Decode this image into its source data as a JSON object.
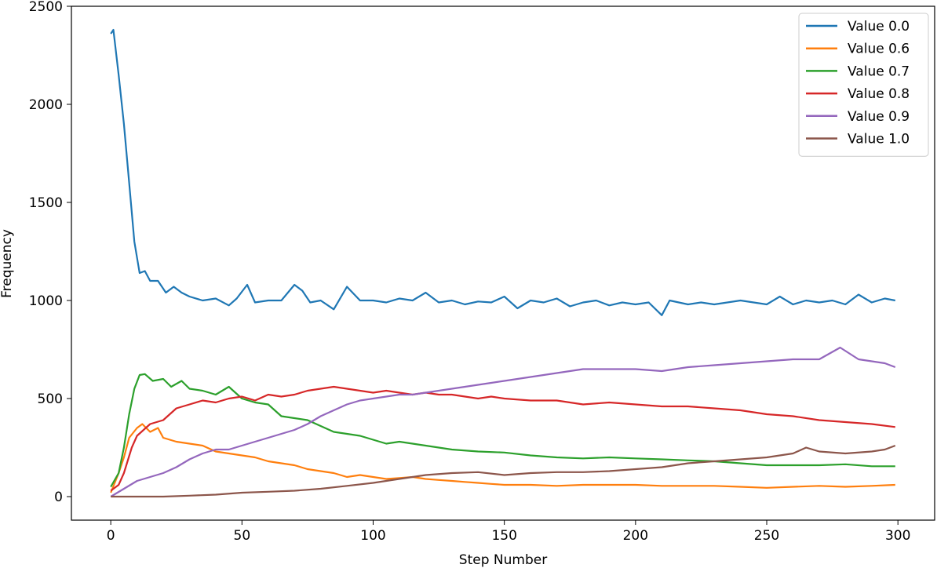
{
  "chart_data": {
    "type": "line",
    "title": "",
    "xlabel": "Step Number",
    "ylabel": "Frequency",
    "xlim": [
      -15,
      314
    ],
    "ylim": [
      -120,
      2500
    ],
    "xticks": [
      0,
      50,
      100,
      150,
      200,
      250,
      300
    ],
    "yticks": [
      0,
      500,
      1000,
      1500,
      2000,
      2500
    ],
    "grid": false,
    "legend_position": "top-right",
    "series": [
      {
        "name": "Value 0.0",
        "color": "#1f77b4",
        "points": [
          [
            0,
            2360
          ],
          [
            1,
            2380
          ],
          [
            3,
            2150
          ],
          [
            5,
            1900
          ],
          [
            7,
            1600
          ],
          [
            9,
            1300
          ],
          [
            11,
            1140
          ],
          [
            13,
            1150
          ],
          [
            15,
            1100
          ],
          [
            18,
            1100
          ],
          [
            21,
            1040
          ],
          [
            24,
            1070
          ],
          [
            27,
            1040
          ],
          [
            30,
            1020
          ],
          [
            35,
            1000
          ],
          [
            40,
            1010
          ],
          [
            45,
            975
          ],
          [
            48,
            1010
          ],
          [
            52,
            1080
          ],
          [
            55,
            990
          ],
          [
            60,
            1000
          ],
          [
            65,
            1000
          ],
          [
            70,
            1080
          ],
          [
            73,
            1050
          ],
          [
            76,
            990
          ],
          [
            80,
            1000
          ],
          [
            85,
            955
          ],
          [
            90,
            1070
          ],
          [
            95,
            1000
          ],
          [
            100,
            1000
          ],
          [
            105,
            990
          ],
          [
            110,
            1010
          ],
          [
            115,
            1000
          ],
          [
            120,
            1040
          ],
          [
            125,
            990
          ],
          [
            130,
            1000
          ],
          [
            135,
            980
          ],
          [
            140,
            995
          ],
          [
            145,
            990
          ],
          [
            150,
            1020
          ],
          [
            155,
            960
          ],
          [
            160,
            1000
          ],
          [
            165,
            990
          ],
          [
            170,
            1010
          ],
          [
            175,
            970
          ],
          [
            180,
            990
          ],
          [
            185,
            1000
          ],
          [
            190,
            975
          ],
          [
            195,
            990
          ],
          [
            200,
            980
          ],
          [
            205,
            990
          ],
          [
            210,
            925
          ],
          [
            213,
            1000
          ],
          [
            220,
            980
          ],
          [
            225,
            990
          ],
          [
            230,
            980
          ],
          [
            235,
            990
          ],
          [
            240,
            1000
          ],
          [
            245,
            990
          ],
          [
            250,
            980
          ],
          [
            255,
            1020
          ],
          [
            260,
            980
          ],
          [
            265,
            1000
          ],
          [
            270,
            990
          ],
          [
            275,
            1000
          ],
          [
            280,
            980
          ],
          [
            285,
            1030
          ],
          [
            290,
            990
          ],
          [
            295,
            1010
          ],
          [
            299,
            1000
          ]
        ]
      },
      {
        "name": "Value 0.6",
        "color": "#ff7f0e",
        "points": [
          [
            0,
            20
          ],
          [
            3,
            120
          ],
          [
            5,
            200
          ],
          [
            7,
            300
          ],
          [
            10,
            350
          ],
          [
            12,
            370
          ],
          [
            15,
            330
          ],
          [
            18,
            350
          ],
          [
            20,
            300
          ],
          [
            25,
            280
          ],
          [
            30,
            270
          ],
          [
            35,
            260
          ],
          [
            40,
            230
          ],
          [
            45,
            220
          ],
          [
            50,
            210
          ],
          [
            55,
            200
          ],
          [
            60,
            180
          ],
          [
            65,
            170
          ],
          [
            70,
            160
          ],
          [
            75,
            140
          ],
          [
            80,
            130
          ],
          [
            85,
            120
          ],
          [
            90,
            100
          ],
          [
            95,
            110
          ],
          [
            100,
            100
          ],
          [
            105,
            90
          ],
          [
            110,
            95
          ],
          [
            115,
            100
          ],
          [
            120,
            90
          ],
          [
            125,
            85
          ],
          [
            130,
            80
          ],
          [
            135,
            75
          ],
          [
            140,
            70
          ],
          [
            145,
            65
          ],
          [
            150,
            60
          ],
          [
            160,
            60
          ],
          [
            170,
            55
          ],
          [
            180,
            60
          ],
          [
            190,
            60
          ],
          [
            200,
            60
          ],
          [
            210,
            55
          ],
          [
            220,
            55
          ],
          [
            230,
            55
          ],
          [
            240,
            50
          ],
          [
            250,
            45
          ],
          [
            260,
            50
          ],
          [
            270,
            55
          ],
          [
            280,
            50
          ],
          [
            290,
            55
          ],
          [
            299,
            60
          ]
        ]
      },
      {
        "name": "Value 0.7",
        "color": "#2ca02c",
        "points": [
          [
            0,
            50
          ],
          [
            3,
            120
          ],
          [
            5,
            250
          ],
          [
            7,
            420
          ],
          [
            9,
            550
          ],
          [
            11,
            620
          ],
          [
            13,
            625
          ],
          [
            16,
            590
          ],
          [
            20,
            600
          ],
          [
            23,
            560
          ],
          [
            27,
            590
          ],
          [
            30,
            550
          ],
          [
            35,
            540
          ],
          [
            40,
            520
          ],
          [
            45,
            560
          ],
          [
            50,
            500
          ],
          [
            55,
            480
          ],
          [
            60,
            470
          ],
          [
            65,
            410
          ],
          [
            70,
            400
          ],
          [
            75,
            390
          ],
          [
            80,
            360
          ],
          [
            85,
            330
          ],
          [
            90,
            320
          ],
          [
            95,
            310
          ],
          [
            100,
            290
          ],
          [
            105,
            270
          ],
          [
            110,
            280
          ],
          [
            115,
            270
          ],
          [
            120,
            260
          ],
          [
            125,
            250
          ],
          [
            130,
            240
          ],
          [
            140,
            230
          ],
          [
            150,
            225
          ],
          [
            160,
            210
          ],
          [
            170,
            200
          ],
          [
            180,
            195
          ],
          [
            190,
            200
          ],
          [
            200,
            195
          ],
          [
            210,
            190
          ],
          [
            220,
            185
          ],
          [
            230,
            180
          ],
          [
            240,
            170
          ],
          [
            250,
            160
          ],
          [
            260,
            160
          ],
          [
            270,
            160
          ],
          [
            280,
            165
          ],
          [
            290,
            155
          ],
          [
            299,
            155
          ]
        ]
      },
      {
        "name": "Value 0.8",
        "color": "#d62728",
        "points": [
          [
            0,
            30
          ],
          [
            3,
            60
          ],
          [
            5,
            120
          ],
          [
            8,
            250
          ],
          [
            10,
            310
          ],
          [
            15,
            370
          ],
          [
            20,
            390
          ],
          [
            25,
            450
          ],
          [
            30,
            470
          ],
          [
            35,
            490
          ],
          [
            40,
            480
          ],
          [
            45,
            500
          ],
          [
            50,
            510
          ],
          [
            55,
            490
          ],
          [
            60,
            520
          ],
          [
            65,
            510
          ],
          [
            70,
            520
          ],
          [
            75,
            540
          ],
          [
            80,
            550
          ],
          [
            85,
            560
          ],
          [
            90,
            550
          ],
          [
            95,
            540
          ],
          [
            100,
            530
          ],
          [
            105,
            540
          ],
          [
            110,
            530
          ],
          [
            115,
            520
          ],
          [
            120,
            530
          ],
          [
            125,
            520
          ],
          [
            130,
            520
          ],
          [
            135,
            510
          ],
          [
            140,
            500
          ],
          [
            145,
            510
          ],
          [
            150,
            500
          ],
          [
            160,
            490
          ],
          [
            170,
            490
          ],
          [
            180,
            470
          ],
          [
            190,
            480
          ],
          [
            200,
            470
          ],
          [
            210,
            460
          ],
          [
            220,
            460
          ],
          [
            230,
            450
          ],
          [
            240,
            440
          ],
          [
            250,
            420
          ],
          [
            260,
            410
          ],
          [
            270,
            390
          ],
          [
            280,
            380
          ],
          [
            290,
            370
          ],
          [
            299,
            355
          ]
        ]
      },
      {
        "name": "Value 0.9",
        "color": "#9467bd",
        "points": [
          [
            0,
            0
          ],
          [
            5,
            40
          ],
          [
            10,
            80
          ],
          [
            15,
            100
          ],
          [
            20,
            120
          ],
          [
            25,
            150
          ],
          [
            30,
            190
          ],
          [
            35,
            220
          ],
          [
            40,
            240
          ],
          [
            45,
            240
          ],
          [
            50,
            260
          ],
          [
            55,
            280
          ],
          [
            60,
            300
          ],
          [
            65,
            320
          ],
          [
            70,
            340
          ],
          [
            75,
            370
          ],
          [
            80,
            410
          ],
          [
            85,
            440
          ],
          [
            90,
            470
          ],
          [
            95,
            490
          ],
          [
            100,
            500
          ],
          [
            105,
            510
          ],
          [
            110,
            520
          ],
          [
            115,
            520
          ],
          [
            120,
            530
          ],
          [
            125,
            540
          ],
          [
            130,
            550
          ],
          [
            135,
            560
          ],
          [
            140,
            570
          ],
          [
            145,
            580
          ],
          [
            150,
            590
          ],
          [
            160,
            610
          ],
          [
            170,
            630
          ],
          [
            180,
            650
          ],
          [
            190,
            650
          ],
          [
            200,
            650
          ],
          [
            210,
            640
          ],
          [
            220,
            660
          ],
          [
            230,
            670
          ],
          [
            240,
            680
          ],
          [
            250,
            690
          ],
          [
            260,
            700
          ],
          [
            270,
            700
          ],
          [
            278,
            760
          ],
          [
            285,
            700
          ],
          [
            290,
            690
          ],
          [
            295,
            680
          ],
          [
            299,
            660
          ]
        ]
      },
      {
        "name": "Value 1.0",
        "color": "#8c564b",
        "points": [
          [
            0,
            0
          ],
          [
            10,
            0
          ],
          [
            20,
            0
          ],
          [
            30,
            5
          ],
          [
            40,
            10
          ],
          [
            50,
            20
          ],
          [
            60,
            25
          ],
          [
            70,
            30
          ],
          [
            80,
            40
          ],
          [
            90,
            55
          ],
          [
            100,
            70
          ],
          [
            110,
            90
          ],
          [
            120,
            110
          ],
          [
            130,
            120
          ],
          [
            140,
            125
          ],
          [
            150,
            110
          ],
          [
            160,
            120
          ],
          [
            170,
            125
          ],
          [
            180,
            125
          ],
          [
            190,
            130
          ],
          [
            200,
            140
          ],
          [
            210,
            150
          ],
          [
            220,
            170
          ],
          [
            230,
            180
          ],
          [
            240,
            190
          ],
          [
            250,
            200
          ],
          [
            260,
            220
          ],
          [
            265,
            250
          ],
          [
            270,
            230
          ],
          [
            280,
            220
          ],
          [
            290,
            230
          ],
          [
            295,
            240
          ],
          [
            299,
            260
          ]
        ]
      }
    ]
  }
}
